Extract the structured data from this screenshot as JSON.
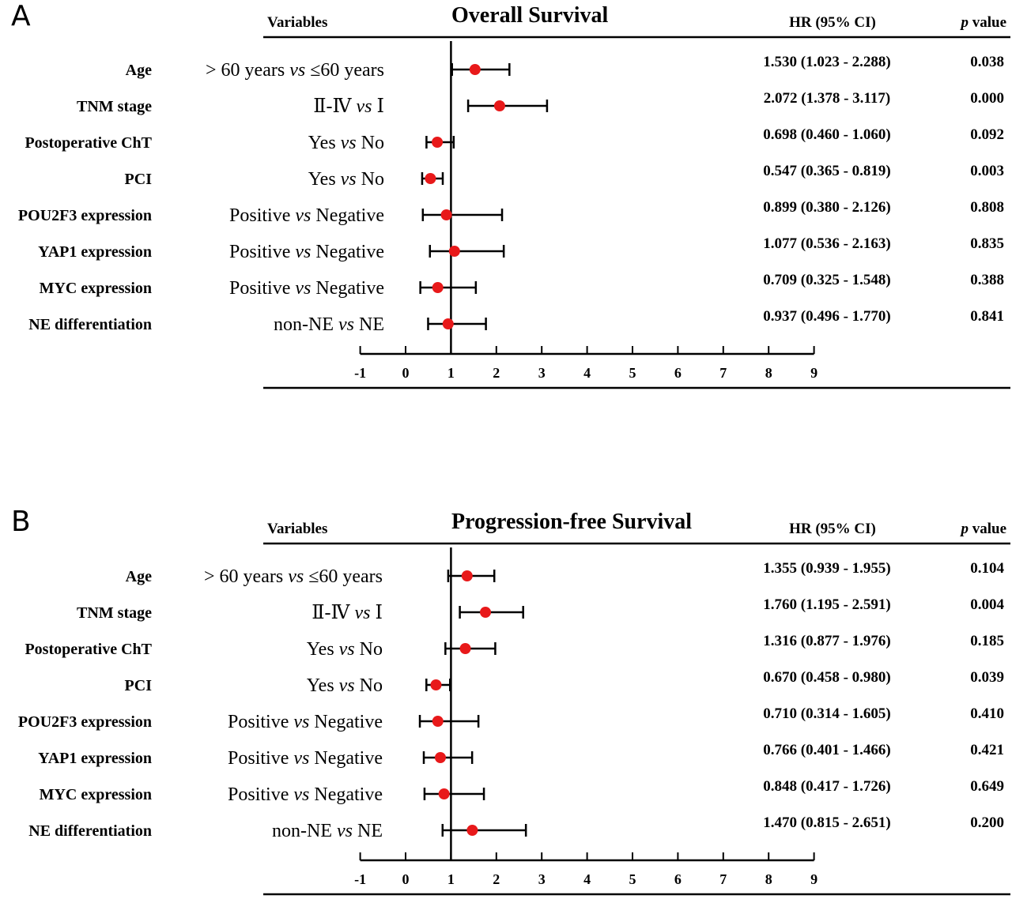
{
  "chart_data": [
    {
      "type": "forest",
      "panel_label": "A",
      "title": "Overall Survival",
      "headers": {
        "variables": "Variables",
        "hr": "HR (95% CI)",
        "p_italic": "p",
        "p_rest": " value"
      },
      "xlim": [
        -1,
        9
      ],
      "xticks": [
        "-1",
        "0",
        "1",
        "2",
        "3",
        "4",
        "5",
        "6",
        "7",
        "8",
        "9"
      ],
      "reference_line": 1,
      "rows": [
        {
          "variable": "Age",
          "comparison": [
            {
              "t": "> 60 years "
            },
            {
              "t": "vs",
              "i": true
            },
            {
              "t": " ≤60 years"
            }
          ],
          "hr": 1.53,
          "lower": 1.023,
          "upper": 2.288,
          "hr_text": "1.530 (1.023 - 2.288)",
          "p": "0.038"
        },
        {
          "variable": "TNM stage",
          "comparison": [
            {
              "t": "Ⅱ-Ⅳ "
            },
            {
              "t": "vs",
              "i": true
            },
            {
              "t": " Ⅰ"
            }
          ],
          "hr": 2.072,
          "lower": 1.378,
          "upper": 3.117,
          "hr_text": "2.072 (1.378 - 3.117)",
          "p": "0.000"
        },
        {
          "variable": "Postoperative ChT",
          "comparison": [
            {
              "t": "Yes "
            },
            {
              "t": "vs",
              "i": true
            },
            {
              "t": " No"
            }
          ],
          "hr": 0.698,
          "lower": 0.46,
          "upper": 1.06,
          "hr_text": "0.698 (0.460 - 1.060)",
          "p": "0.092"
        },
        {
          "variable": "PCI",
          "comparison": [
            {
              "t": "Yes "
            },
            {
              "t": "vs",
              "i": true
            },
            {
              "t": " No"
            }
          ],
          "hr": 0.547,
          "lower": 0.365,
          "upper": 0.819,
          "hr_text": "0.547 (0.365 - 0.819)",
          "p": "0.003"
        },
        {
          "variable": "POU2F3 expression",
          "comparison": [
            {
              "t": "Positive "
            },
            {
              "t": "vs",
              "i": true
            },
            {
              "t": " Negative"
            }
          ],
          "hr": 0.899,
          "lower": 0.38,
          "upper": 2.126,
          "hr_text": "0.899 (0.380 - 2.126)",
          "p": "0.808"
        },
        {
          "variable": "YAP1 expression",
          "comparison": [
            {
              "t": "Positive "
            },
            {
              "t": "vs",
              "i": true
            },
            {
              "t": " Negative"
            }
          ],
          "hr": 1.077,
          "lower": 0.536,
          "upper": 2.163,
          "hr_text": "1.077 (0.536 - 2.163)",
          "p": "0.835"
        },
        {
          "variable": "MYC expression",
          "comparison": [
            {
              "t": "Positive "
            },
            {
              "t": "vs",
              "i": true
            },
            {
              "t": " Negative"
            }
          ],
          "hr": 0.709,
          "lower": 0.325,
          "upper": 1.548,
          "hr_text": "0.709 (0.325 - 1.548)",
          "p": "0.388"
        },
        {
          "variable": "NE differentiation",
          "comparison": [
            {
              "t": "non-NE  "
            },
            {
              "t": "vs",
              "i": true
            },
            {
              "t": " NE"
            }
          ],
          "hr": 0.937,
          "lower": 0.496,
          "upper": 1.77,
          "hr_text": "0.937 (0.496 - 1.770)",
          "p": "0.841"
        }
      ]
    },
    {
      "type": "forest",
      "panel_label": "B",
      "title": "Progression-free Survival",
      "headers": {
        "variables": "Variables",
        "hr": "HR (95% CI)",
        "p_italic": "p",
        "p_rest": " value"
      },
      "xlim": [
        -1,
        9
      ],
      "xticks": [
        "-1",
        "0",
        "1",
        "2",
        "3",
        "4",
        "5",
        "6",
        "7",
        "8",
        "9"
      ],
      "reference_line": 1,
      "rows": [
        {
          "variable": "Age",
          "comparison": [
            {
              "t": "> 60 years "
            },
            {
              "t": "vs",
              "i": true
            },
            {
              "t": " ≤60 years"
            }
          ],
          "hr": 1.355,
          "lower": 0.939,
          "upper": 1.955,
          "hr_text": "1.355 (0.939 - 1.955)",
          "p": "0.104"
        },
        {
          "variable": "TNM stage",
          "comparison": [
            {
              "t": "Ⅱ-Ⅳ "
            },
            {
              "t": "vs",
              "i": true
            },
            {
              "t": " Ⅰ"
            }
          ],
          "hr": 1.76,
          "lower": 1.195,
          "upper": 2.591,
          "hr_text": "1.760 (1.195 - 2.591)",
          "p": "0.004"
        },
        {
          "variable": "Postoperative ChT",
          "comparison": [
            {
              "t": "Yes "
            },
            {
              "t": "vs",
              "i": true
            },
            {
              "t": " No"
            }
          ],
          "hr": 1.316,
          "lower": 0.877,
          "upper": 1.976,
          "hr_text": "1.316 (0.877 - 1.976)",
          "p": "0.185"
        },
        {
          "variable": "PCI",
          "comparison": [
            {
              "t": "Yes "
            },
            {
              "t": "vs",
              "i": true
            },
            {
              "t": " No"
            }
          ],
          "hr": 0.67,
          "lower": 0.458,
          "upper": 0.98,
          "hr_text": "0.670 (0.458 - 0.980)",
          "p": "0.039"
        },
        {
          "variable": "POU2F3 expression",
          "comparison": [
            {
              "t": "Positive "
            },
            {
              "t": "vs",
              "i": true
            },
            {
              "t": " Negative"
            }
          ],
          "hr": 0.71,
          "lower": 0.314,
          "upper": 1.605,
          "hr_text": "0.710 (0.314 - 1.605)",
          "p": "0.410"
        },
        {
          "variable": "YAP1 expression",
          "comparison": [
            {
              "t": "Positive "
            },
            {
              "t": "vs",
              "i": true
            },
            {
              "t": " Negative"
            }
          ],
          "hr": 0.766,
          "lower": 0.401,
          "upper": 1.466,
          "hr_text": "0.766 (0.401 - 1.466)",
          "p": "0.421"
        },
        {
          "variable": "MYC expression",
          "comparison": [
            {
              "t": "Positive "
            },
            {
              "t": "vs",
              "i": true
            },
            {
              "t": " Negative"
            }
          ],
          "hr": 0.848,
          "lower": 0.417,
          "upper": 1.726,
          "hr_text": "0.848 (0.417 - 1.726)",
          "p": "0.649"
        },
        {
          "variable": "NE differentiation",
          "comparison": [
            {
              "t": "non-NE "
            },
            {
              "t": "vs",
              "i": true
            },
            {
              "t": " NE"
            }
          ],
          "hr": 1.47,
          "lower": 0.815,
          "upper": 2.651,
          "hr_text": "1.470 (0.815 - 2.651)",
          "p": "0.200"
        }
      ]
    }
  ],
  "colors": {
    "point": "#e8191a",
    "line": "#000000"
  }
}
